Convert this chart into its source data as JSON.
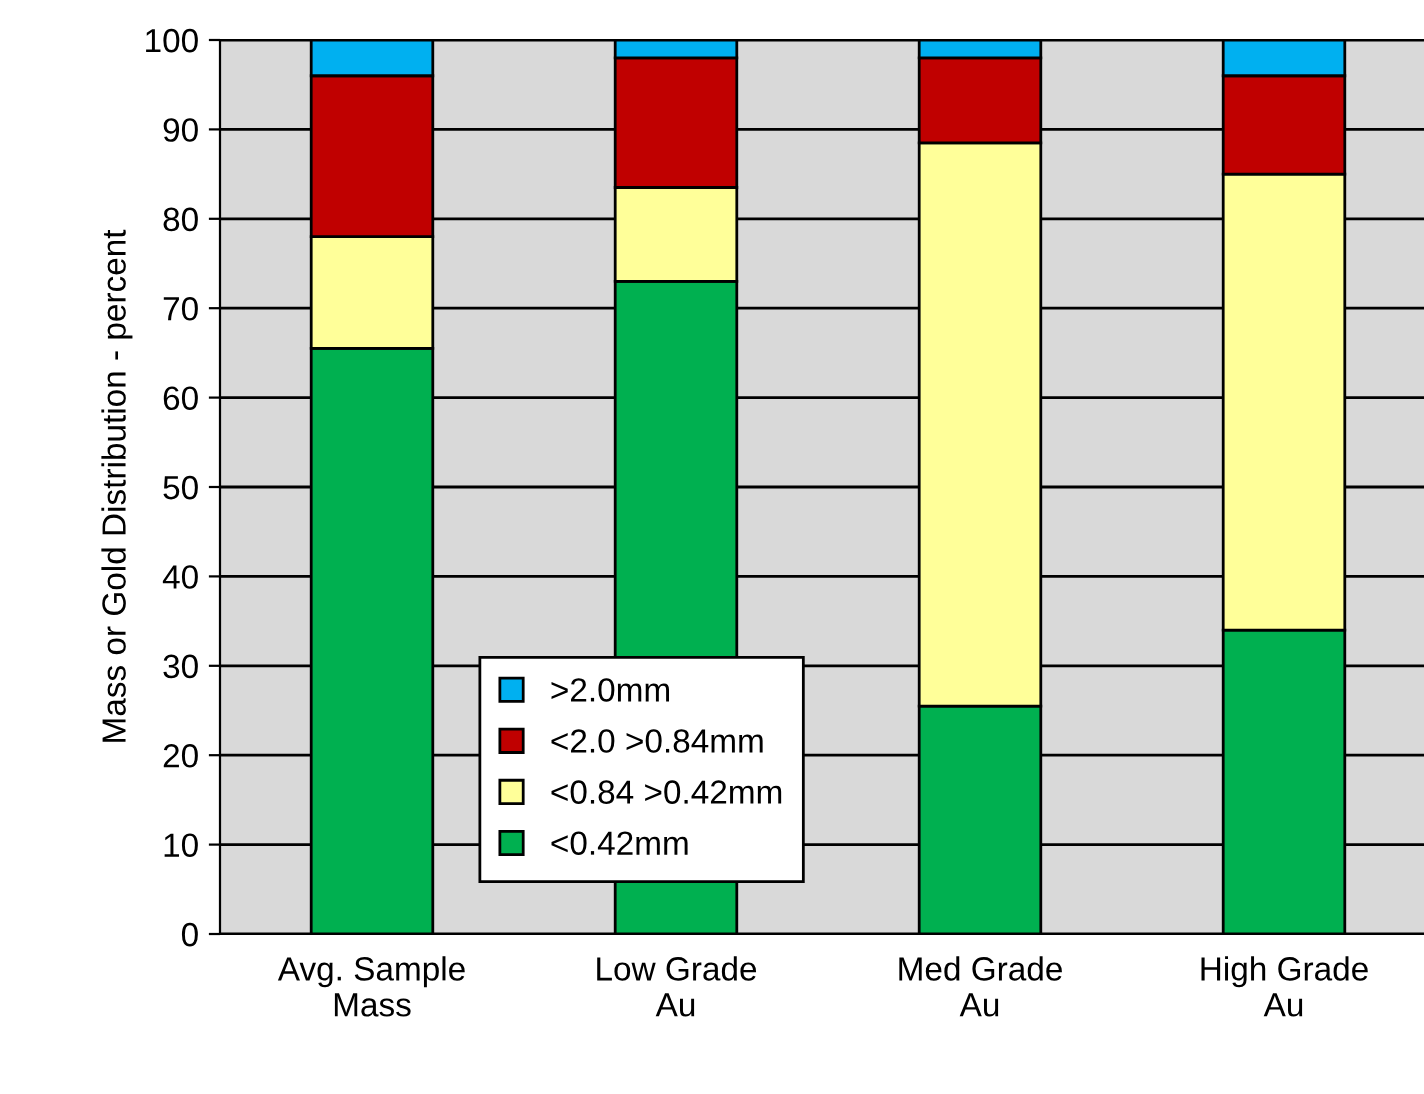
{
  "chart_data": {
    "type": "bar",
    "stacked": true,
    "ylabel": "Mass or Gold Distribution - percent",
    "categories": [
      "Avg. Sample\nMass",
      "Low Grade\nAu",
      "Med Grade\nAu",
      "High Grade\nAu"
    ],
    "series": [
      {
        "name": "<0.42mm",
        "color": "#00b050",
        "values": [
          65.5,
          73,
          25.5,
          34
        ]
      },
      {
        "name": "<0.84 >0.42mm",
        "color": "#ffff99",
        "values": [
          12.5,
          10.5,
          63,
          51
        ]
      },
      {
        "name": "<2.0 >0.84mm",
        "color": "#c00000",
        "values": [
          18,
          14.5,
          9.5,
          11
        ]
      },
      {
        "name": ">2.0mm",
        "color": "#00b0f0",
        "values": [
          4,
          2,
          2,
          4
        ]
      }
    ],
    "ylim": [
      0,
      100
    ],
    "yticks": [
      0,
      10,
      20,
      30,
      40,
      50,
      60,
      70,
      80,
      90,
      100
    ],
    "grid": "y",
    "legend": "bottom left"
  }
}
